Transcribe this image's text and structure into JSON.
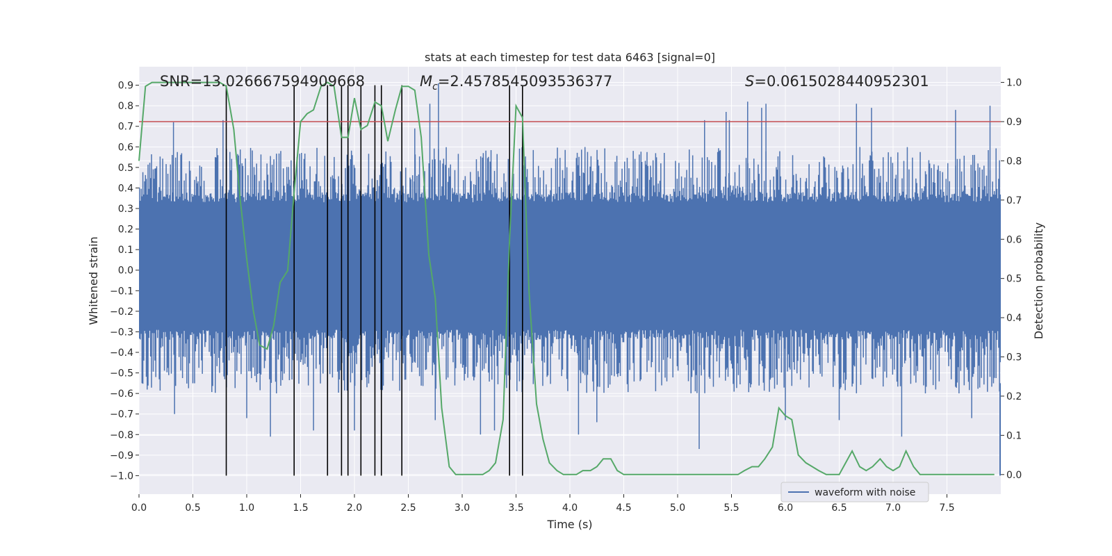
{
  "chart_data": {
    "type": "line",
    "title": "stats at each timestep for test data 6463 [signal=0]",
    "xlabel": "Time (s)",
    "ylabel": "Whitened strain",
    "y2label": "Detection probability",
    "xlim": [
      0,
      8
    ],
    "ylim": [
      -1.09,
      0.99
    ],
    "y2lim": [
      -0.05,
      1.04
    ],
    "x_ticks": [
      0.0,
      0.5,
      1.0,
      1.5,
      2.0,
      2.5,
      3.0,
      3.5,
      4.0,
      4.5,
      5.0,
      5.5,
      6.0,
      6.5,
      7.0,
      7.5
    ],
    "x_tick_labels": [
      "0.0",
      "0.5",
      "1.0",
      "1.5",
      "2.0",
      "2.5",
      "3.0",
      "3.5",
      "4.0",
      "4.5",
      "5.0",
      "5.5",
      "6.0",
      "6.5",
      "7.0",
      "7.5"
    ],
    "y_ticks": [
      0.9,
      0.8,
      0.7,
      0.6,
      0.5,
      0.4,
      0.3,
      0.2,
      0.1,
      0.0,
      -0.1,
      -0.2,
      -0.3,
      -0.4,
      -0.5,
      -0.6,
      -0.7,
      -0.8,
      -0.9,
      -1.0
    ],
    "y_tick_labels": [
      "0.9",
      "0.8",
      "0.7",
      "0.6",
      "0.5",
      "0.4",
      "0.3",
      "0.2",
      "0.1",
      "0.0",
      "−0.1",
      "−0.2",
      "−0.3",
      "−0.4",
      "−0.5",
      "−0.6",
      "−0.7",
      "−0.8",
      "−0.9",
      "−1.0"
    ],
    "y2_ticks": [
      1.0,
      0.9,
      0.8,
      0.7,
      0.6,
      0.5,
      0.4,
      0.3,
      0.2,
      0.1,
      0.0
    ],
    "y2_tick_labels": [
      "1.0",
      "0.9",
      "0.8",
      "0.7",
      "0.6",
      "0.5",
      "0.4",
      "0.3",
      "0.2",
      "0.1",
      "0.0"
    ],
    "annotations": {
      "snr": "SNR=13.026667594909668",
      "mc_symbol": "M",
      "mc_subscript": "c",
      "mc_value": "=2.4578545093536377",
      "s_symbol": "S",
      "s_value": "=0.0615028440952301"
    },
    "threshold": {
      "y2": 0.9
    },
    "trigger_times": [
      0.81,
      1.44,
      1.75,
      1.88,
      1.94,
      2.06,
      2.19,
      2.25,
      2.44,
      3.44,
      3.56
    ],
    "trigger_range": [
      -1.0,
      0.9
    ],
    "legend": {
      "entries": [
        "waveform with noise"
      ],
      "position": "lower-right"
    },
    "series": [
      {
        "name": "waveform with noise",
        "color": "#4c72b0",
        "kind": "noise",
        "core_band": [
          -0.29,
          0.33
        ],
        "typical_peak_range": [
          0.35,
          0.6
        ],
        "spikes": [
          {
            "t": 0.32,
            "v": 0.72
          },
          {
            "t": 0.33,
            "v": -0.7
          },
          {
            "t": 0.78,
            "v": 0.73
          },
          {
            "t": 1.0,
            "v": -0.72
          },
          {
            "t": 1.22,
            "v": -0.81
          },
          {
            "t": 1.62,
            "v": -0.78
          },
          {
            "t": 2.0,
            "v": -0.78
          },
          {
            "t": 2.56,
            "v": 0.69
          },
          {
            "t": 2.7,
            "v": 0.81
          },
          {
            "t": 2.75,
            "v": -0.73
          },
          {
            "t": 2.78,
            "v": 0.91
          },
          {
            "t": 3.17,
            "v": -0.8
          },
          {
            "t": 3.3,
            "v": -0.78
          },
          {
            "t": 4.08,
            "v": -0.8
          },
          {
            "t": 4.25,
            "v": -0.74
          },
          {
            "t": 5.2,
            "v": -0.87
          },
          {
            "t": 5.25,
            "v": 0.73
          },
          {
            "t": 5.45,
            "v": 0.77
          },
          {
            "t": 5.48,
            "v": 0.73
          },
          {
            "t": 5.65,
            "v": 0.82
          },
          {
            "t": 5.78,
            "v": 0.79
          },
          {
            "t": 5.82,
            "v": 0.81
          },
          {
            "t": 6.0,
            "v": -0.73
          },
          {
            "t": 6.5,
            "v": -0.73
          },
          {
            "t": 6.66,
            "v": 0.81
          },
          {
            "t": 6.8,
            "v": 0.79
          },
          {
            "t": 7.08,
            "v": -0.81
          },
          {
            "t": 7.58,
            "v": 0.78
          },
          {
            "t": 7.73,
            "v": -0.72
          },
          {
            "t": 7.9,
            "v": 0.8
          }
        ]
      },
      {
        "name": "detection probability",
        "color": "#55a868",
        "axis": "y2",
        "x": [
          0.0,
          0.06,
          0.12,
          0.19,
          0.25,
          0.31,
          0.38,
          0.44,
          0.5,
          0.56,
          0.62,
          0.69,
          0.75,
          0.81,
          0.88,
          0.94,
          1.0,
          1.06,
          1.12,
          1.19,
          1.25,
          1.31,
          1.38,
          1.44,
          1.5,
          1.56,
          1.62,
          1.69,
          1.75,
          1.81,
          1.88,
          1.94,
          2.0,
          2.06,
          2.12,
          2.19,
          2.25,
          2.31,
          2.38,
          2.44,
          2.5,
          2.56,
          2.62,
          2.69,
          2.75,
          2.81,
          2.88,
          2.94,
          3.0,
          3.06,
          3.12,
          3.19,
          3.25,
          3.31,
          3.38,
          3.44,
          3.5,
          3.56,
          3.62,
          3.69,
          3.75,
          3.81,
          3.88,
          3.94,
          4.0,
          4.06,
          4.12,
          4.19,
          4.25,
          4.31,
          4.38,
          4.44,
          4.5,
          4.56,
          4.62,
          4.69,
          4.75,
          4.81,
          4.88,
          4.94,
          5.0,
          5.06,
          5.12,
          5.19,
          5.25,
          5.31,
          5.38,
          5.44,
          5.5,
          5.56,
          5.62,
          5.69,
          5.75,
          5.81,
          5.88,
          5.94,
          6.0,
          6.06,
          6.12,
          6.19,
          6.25,
          6.31,
          6.38,
          6.44,
          6.5,
          6.56,
          6.62,
          6.69,
          6.75,
          6.81,
          6.88,
          6.94,
          7.0,
          7.06,
          7.12,
          7.19,
          7.25,
          7.31,
          7.38,
          7.44,
          7.5,
          7.56,
          7.62,
          7.69,
          7.75,
          7.81,
          7.88,
          7.94
        ],
        "values": [
          0.8,
          0.99,
          1.0,
          1.0,
          1.0,
          1.0,
          1.0,
          1.0,
          1.0,
          1.0,
          1.0,
          1.0,
          1.0,
          0.99,
          0.88,
          0.7,
          0.55,
          0.42,
          0.33,
          0.32,
          0.38,
          0.49,
          0.52,
          0.72,
          0.9,
          0.92,
          0.93,
          0.99,
          1.0,
          0.99,
          0.86,
          0.86,
          0.96,
          0.88,
          0.89,
          0.95,
          0.94,
          0.85,
          0.93,
          0.99,
          0.99,
          0.98,
          0.86,
          0.56,
          0.45,
          0.17,
          0.02,
          0.0,
          0.0,
          0.0,
          0.0,
          0.0,
          0.01,
          0.03,
          0.14,
          0.6,
          0.94,
          0.91,
          0.47,
          0.18,
          0.09,
          0.03,
          0.01,
          0.0,
          0.0,
          0.0,
          0.01,
          0.01,
          0.02,
          0.04,
          0.04,
          0.01,
          0.0,
          0.0,
          0.0,
          0.0,
          0.0,
          0.0,
          0.0,
          0.0,
          0.0,
          0.0,
          0.0,
          0.0,
          0.0,
          0.0,
          0.0,
          0.0,
          0.0,
          0.0,
          0.01,
          0.02,
          0.02,
          0.04,
          0.07,
          0.17,
          0.15,
          0.14,
          0.05,
          0.03,
          0.02,
          0.01,
          0.0,
          0.0,
          0.0,
          0.03,
          0.06,
          0.02,
          0.01,
          0.02,
          0.04,
          0.02,
          0.01,
          0.02,
          0.06,
          0.02,
          0.0,
          0.0,
          0.0,
          0.0,
          0.0,
          0.0,
          0.0,
          0.0,
          0.0,
          0.0,
          0.0,
          0.0
        ]
      }
    ]
  },
  "colors": {
    "plot_bg": "#eaeaf2",
    "grid": "#ffffff",
    "strain": "#4c72b0",
    "probability": "#55a868",
    "threshold": "#c44e52",
    "trigger": "#000000"
  }
}
